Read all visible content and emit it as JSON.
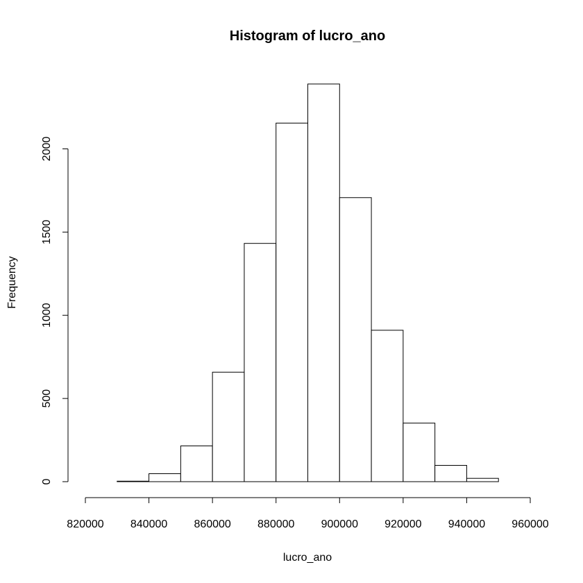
{
  "chart_data": {
    "type": "bar",
    "title": "Histogram of lucro_ano",
    "xlabel": "lucro_ano",
    "ylabel": "Frequency",
    "bins": [
      {
        "from": 820000,
        "to": 830000,
        "count": 0
      },
      {
        "from": 830000,
        "to": 840000,
        "count": 3
      },
      {
        "from": 840000,
        "to": 850000,
        "count": 48
      },
      {
        "from": 850000,
        "to": 860000,
        "count": 215
      },
      {
        "from": 860000,
        "to": 870000,
        "count": 658
      },
      {
        "from": 870000,
        "to": 880000,
        "count": 1432
      },
      {
        "from": 880000,
        "to": 890000,
        "count": 2155
      },
      {
        "from": 890000,
        "to": 900000,
        "count": 2390
      },
      {
        "from": 900000,
        "to": 910000,
        "count": 1707
      },
      {
        "from": 910000,
        "to": 920000,
        "count": 910
      },
      {
        "from": 920000,
        "to": 930000,
        "count": 352
      },
      {
        "from": 930000,
        "to": 940000,
        "count": 98
      },
      {
        "from": 940000,
        "to": 950000,
        "count": 20
      },
      {
        "from": 950000,
        "to": 960000,
        "count": 0
      }
    ],
    "x_ticks": [
      "820000",
      "840000",
      "860000",
      "880000",
      "900000",
      "920000",
      "940000",
      "960000"
    ],
    "y_ticks": [
      "0",
      "500",
      "1000",
      "1500",
      "2000"
    ],
    "xlim": [
      820000,
      960000
    ],
    "grid": false,
    "legend": "none"
  }
}
